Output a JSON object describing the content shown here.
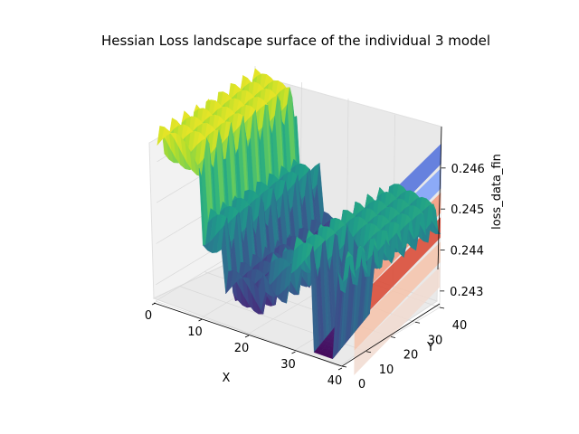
{
  "chart_data": {
    "type": "surface3d",
    "title": "Hessian Loss landscape surface of the individual 3 model",
    "xlabel": "X",
    "ylabel": "Y",
    "zlabel": "loss_data_fin",
    "x_ticks": [
      "0",
      "10",
      "20",
      "30",
      "40"
    ],
    "y_ticks": [
      "0",
      "10",
      "20",
      "30",
      "40"
    ],
    "z_ticks": [
      "0.243",
      "0.244",
      "0.245",
      "0.246"
    ],
    "xlim": [
      0,
      40
    ],
    "ylim": [
      0,
      40
    ],
    "zlim": [
      0.2426,
      0.2469
    ],
    "colormap": "viridis",
    "contour_colormap": "coolwarm",
    "grid": true,
    "surface_bands": [
      {
        "x_range": [
          0,
          9
        ],
        "z": 0.2464
      },
      {
        "x_range": [
          9,
          14
        ],
        "z": 0.2447
      },
      {
        "x_range": [
          14,
          22
        ],
        "z": 0.2435
      },
      {
        "x_range": [
          22,
          28
        ],
        "z": 0.2441
      },
      {
        "x_range": [
          28,
          40
        ],
        "z": 0.2448
      }
    ],
    "pit": {
      "x": 36,
      "y": 10,
      "z": 0.2427
    }
  }
}
